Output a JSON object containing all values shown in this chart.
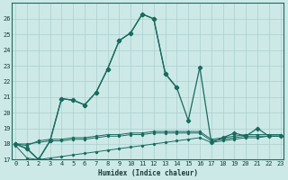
{
  "xlabel": "Humidex (Indice chaleur)",
  "background_color": "#cce9e8",
  "grid_color": "#aacfce",
  "line_color": "#1a6b5e",
  "x_values": [
    0,
    1,
    2,
    3,
    4,
    5,
    6,
    7,
    8,
    9,
    10,
    11,
    12,
    13,
    14,
    15,
    16,
    17,
    18,
    19,
    20,
    21,
    22,
    23
  ],
  "series_main": [
    18.0,
    17.7,
    17.0,
    18.2,
    20.9,
    20.8,
    20.5,
    21.3,
    22.8,
    24.6,
    25.1,
    26.3,
    26.0,
    22.5,
    21.6,
    19.5,
    22.9,
    18.1,
    18.4,
    18.7,
    18.5,
    19.0,
    18.5,
    18.5
  ],
  "series_upper": [
    18.0,
    17.7,
    17.0,
    18.2,
    20.9,
    20.8,
    20.5,
    21.3,
    22.8,
    24.6,
    25.1,
    26.3,
    26.0,
    22.5,
    21.6,
    null,
    null,
    null,
    null,
    null,
    null,
    null,
    null,
    null
  ],
  "series_mid1": [
    18.0,
    17.9,
    18.2,
    18.3,
    18.3,
    18.4,
    18.4,
    18.5,
    18.6,
    18.6,
    18.7,
    18.7,
    18.8,
    18.8,
    18.8,
    18.8,
    18.8,
    18.3,
    18.4,
    18.5,
    18.6,
    18.6,
    18.6,
    18.6
  ],
  "series_mid2": [
    18.0,
    18.0,
    18.1,
    18.2,
    18.2,
    18.3,
    18.3,
    18.4,
    18.5,
    18.5,
    18.6,
    18.6,
    18.7,
    18.7,
    18.7,
    18.7,
    18.7,
    18.2,
    18.3,
    18.4,
    18.5,
    18.5,
    18.5,
    18.5
  ],
  "series_low": [
    17.9,
    17.1,
    17.0,
    17.1,
    17.2,
    17.3,
    17.4,
    17.5,
    17.6,
    17.7,
    17.8,
    17.9,
    18.0,
    18.1,
    18.2,
    18.3,
    18.4,
    18.1,
    18.2,
    18.3,
    18.4,
    18.4,
    18.5,
    18.5
  ],
  "ylim": [
    17,
    27
  ],
  "yticks": [
    17,
    18,
    19,
    20,
    21,
    22,
    23,
    24,
    25,
    26
  ],
  "xticks": [
    0,
    1,
    2,
    3,
    4,
    5,
    6,
    7,
    8,
    9,
    10,
    11,
    12,
    13,
    14,
    15,
    16,
    17,
    18,
    19,
    20,
    21,
    22,
    23
  ],
  "xlim": [
    -0.3,
    23.3
  ]
}
